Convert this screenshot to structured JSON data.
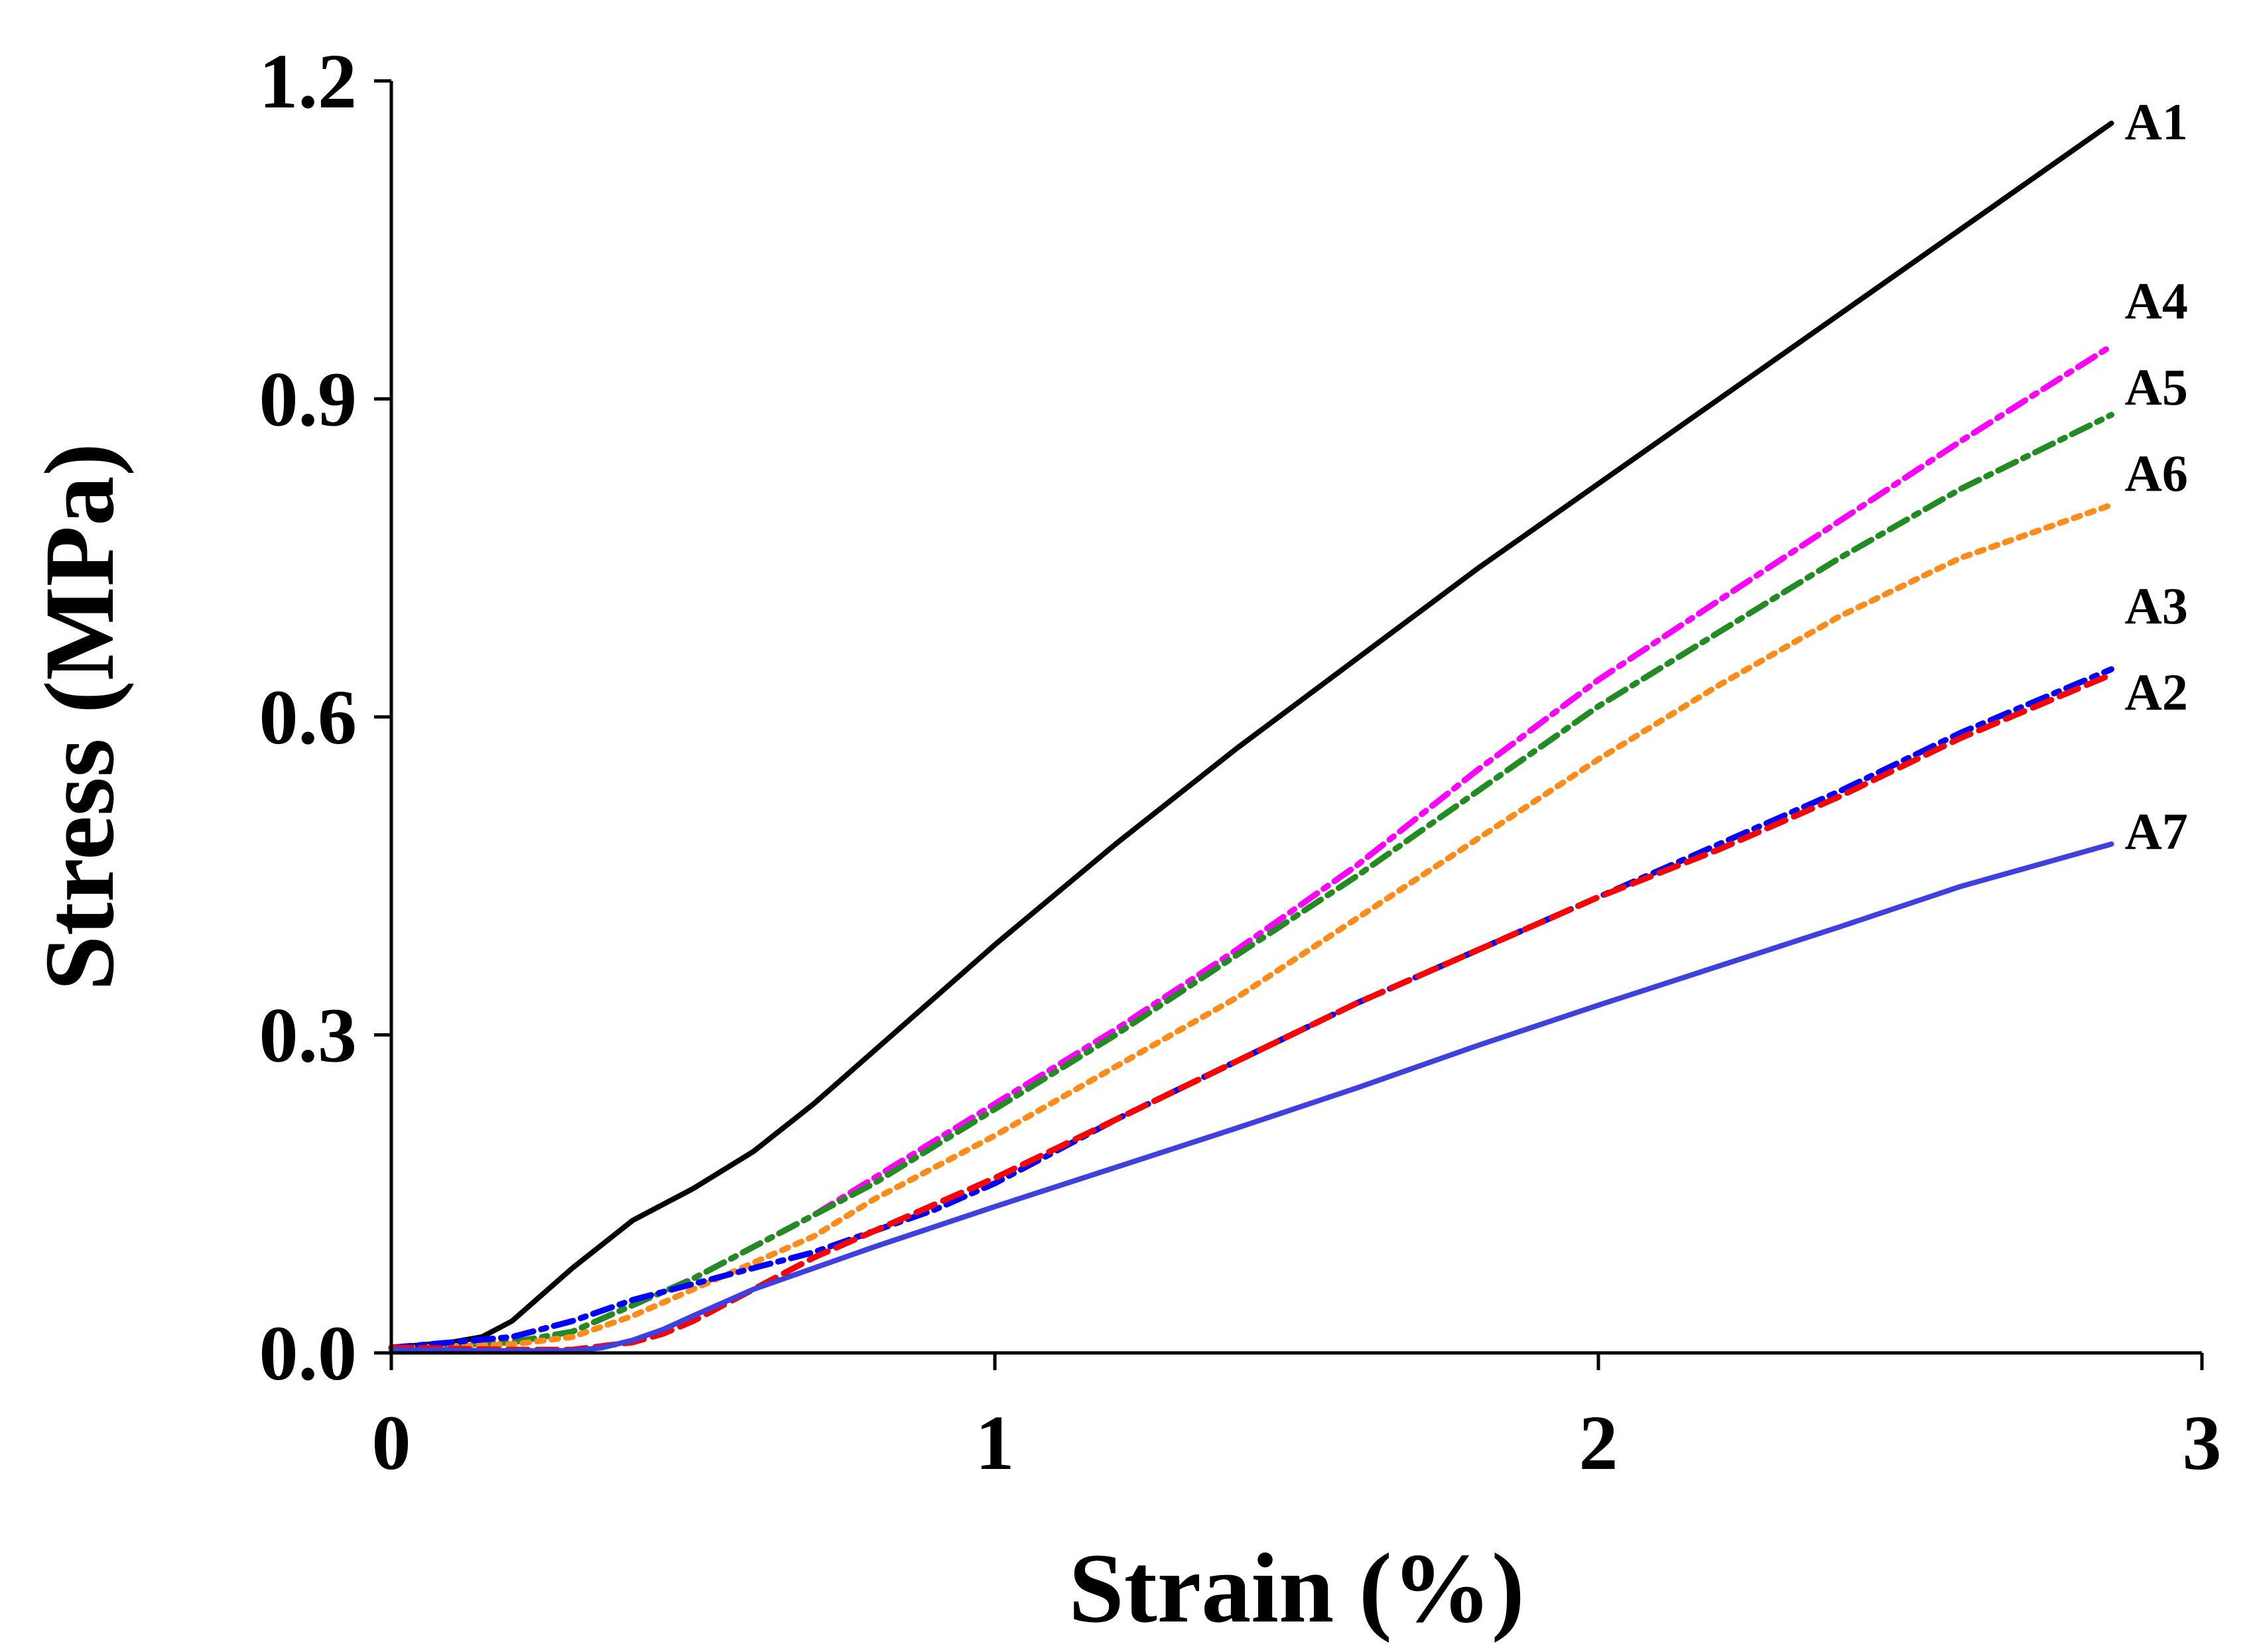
{
  "chart_data": {
    "type": "line",
    "title": "",
    "xlabel": "Strain (%)",
    "ylabel": "Stress (MPa)",
    "xlim": [
      0,
      3
    ],
    "ylim": [
      0,
      1.2
    ],
    "xticks": [
      0,
      1,
      2,
      3
    ],
    "xtick_labels": [
      "0",
      "1",
      "2",
      "3"
    ],
    "yticks": [
      0,
      0.3,
      0.6,
      0.9,
      1.2
    ],
    "ytick_labels": [
      "0.0",
      "0.3",
      "0.6",
      "0.9",
      "1.2"
    ],
    "grid": false,
    "legend": "inline labels at line ends (right)",
    "series": [
      {
        "name": "A1",
        "color": "#000000",
        "style": "solid",
        "x": [
          0,
          0.1,
          0.15,
          0.2,
          0.3,
          0.4,
          0.5,
          0.6,
          0.7,
          0.8,
          0.9,
          1.0,
          1.2,
          1.4,
          1.6,
          1.8,
          2.0,
          2.2,
          2.4,
          2.6,
          2.85
        ],
        "y": [
          0.005,
          0.01,
          0.015,
          0.03,
          0.08,
          0.125,
          0.155,
          0.19,
          0.235,
          0.285,
          0.335,
          0.385,
          0.48,
          0.57,
          0.655,
          0.74,
          0.82,
          0.9,
          0.98,
          1.06,
          1.16
        ]
      },
      {
        "name": "A4",
        "color": "#ff00ff",
        "style": "dash-dot",
        "x": [
          0,
          0.2,
          0.3,
          0.4,
          0.5,
          0.6,
          0.7,
          0.8,
          0.9,
          1.0,
          1.2,
          1.4,
          1.6,
          1.8,
          2.0,
          2.2,
          2.4,
          2.6,
          2.85
        ],
        "y": [
          0.005,
          0.01,
          0.02,
          0.045,
          0.07,
          0.1,
          0.13,
          0.165,
          0.2,
          0.235,
          0.305,
          0.38,
          0.46,
          0.55,
          0.635,
          0.71,
          0.785,
          0.86,
          0.95
        ]
      },
      {
        "name": "A5",
        "color": "#228b22",
        "style": "dash-dot",
        "x": [
          0,
          0.2,
          0.3,
          0.4,
          0.5,
          0.6,
          0.7,
          0.8,
          0.9,
          1.0,
          1.2,
          1.4,
          1.6,
          1.8,
          2.0,
          2.2,
          2.4,
          2.6,
          2.85
        ],
        "y": [
          0.005,
          0.01,
          0.02,
          0.045,
          0.07,
          0.1,
          0.13,
          0.16,
          0.195,
          0.23,
          0.3,
          0.375,
          0.45,
          0.53,
          0.61,
          0.68,
          0.75,
          0.815,
          0.885
        ]
      },
      {
        "name": "A6",
        "color": "#ff8c1a",
        "style": "dotted",
        "x": [
          0,
          0.2,
          0.3,
          0.4,
          0.5,
          0.6,
          0.7,
          0.8,
          0.9,
          1.0,
          1.2,
          1.4,
          1.6,
          1.8,
          2.0,
          2.2,
          2.4,
          2.6,
          2.85
        ],
        "y": [
          0.005,
          0.008,
          0.015,
          0.035,
          0.06,
          0.085,
          0.11,
          0.145,
          0.175,
          0.205,
          0.27,
          0.335,
          0.41,
          0.485,
          0.56,
          0.63,
          0.695,
          0.75,
          0.8
        ]
      },
      {
        "name": "A3",
        "color": "#0000ff",
        "style": "dash-dot",
        "x": [
          0,
          0.2,
          0.3,
          0.4,
          0.5,
          0.6,
          0.7,
          0.8,
          0.9,
          1.0,
          1.2,
          1.4,
          1.6,
          1.8,
          2.0,
          2.2,
          2.4,
          2.6,
          2.85
        ],
        "y": [
          0.005,
          0.015,
          0.03,
          0.05,
          0.065,
          0.08,
          0.095,
          0.115,
          0.135,
          0.16,
          0.22,
          0.275,
          0.33,
          0.38,
          0.43,
          0.48,
          0.53,
          0.585,
          0.645
        ]
      },
      {
        "name": "A2",
        "color": "#ff0000",
        "style": "dashed",
        "x": [
          0,
          0.2,
          0.3,
          0.4,
          0.45,
          0.5,
          0.6,
          0.7,
          0.8,
          0.9,
          1.0,
          1.2,
          1.4,
          1.6,
          1.8,
          2.0,
          2.2,
          2.4,
          2.6,
          2.85
        ],
        "y": [
          0.005,
          0.003,
          0.003,
          0.01,
          0.018,
          0.03,
          0.06,
          0.09,
          0.115,
          0.14,
          0.165,
          0.22,
          0.275,
          0.33,
          0.38,
          0.43,
          0.475,
          0.525,
          0.58,
          0.64
        ]
      },
      {
        "name": "A7",
        "color": "#4040e0",
        "style": "solid",
        "x": [
          0,
          0.2,
          0.3,
          0.35,
          0.4,
          0.45,
          0.5,
          0.6,
          0.8,
          1.0,
          1.2,
          1.4,
          1.6,
          1.8,
          2.0,
          2.2,
          2.4,
          2.6,
          2.85
        ],
        "y": [
          0.003,
          0.002,
          0.002,
          0.005,
          0.012,
          0.022,
          0.035,
          0.06,
          0.1,
          0.138,
          0.175,
          0.212,
          0.25,
          0.29,
          0.328,
          0.365,
          0.402,
          0.44,
          0.48
        ]
      }
    ]
  }
}
